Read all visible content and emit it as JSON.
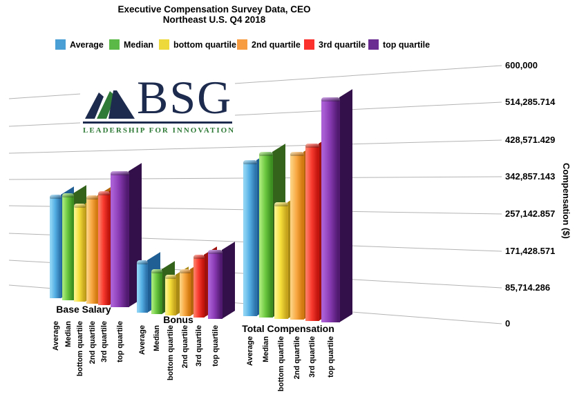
{
  "title": {
    "line1": "Executive Compensation Survey Data, CEO",
    "line2": "Northeast U.S. Q4 2018"
  },
  "logo": {
    "text": "BSG",
    "tagline": "LEADERSHIP FOR INNOVATION",
    "navy": "#1C2B4E",
    "green": "#2E7A36"
  },
  "y_axis": {
    "title": "Compensation ($)",
    "tick_labels": [
      "600,000",
      "514,285.714",
      "428,571.429",
      "342,857.143",
      "257,142.857",
      "171,428.571",
      "85,714.286",
      "0"
    ]
  },
  "chart_data": {
    "type": "bar",
    "style": "3d-perspective-rounded-bars",
    "title": "Executive Compensation Survey Data, CEO",
    "subtitle": "Northeast U.S. Q4 2018",
    "ylabel": "Compensation ($)",
    "ylim": [
      0,
      600000
    ],
    "grid": true,
    "legend_position": "top",
    "categories": [
      "Base Salary",
      "Bonus",
      "Total Compensation"
    ],
    "series": [
      {
        "name": "Average",
        "values": [
          300000,
          130000,
          395000
        ],
        "colors": {
          "legend": "#4A9FD4",
          "light": "#8ED3F4",
          "main": "#55B0E4",
          "dark": "#2D74AC",
          "side": "#1F5F93"
        }
      },
      {
        "name": "Median",
        "values": [
          310000,
          110000,
          420000
        ],
        "colors": {
          "legend": "#5BBA47",
          "light": "#A6E878",
          "main": "#6CC840",
          "dark": "#3C8F20",
          "side": "#34641C"
        }
      },
      {
        "name": "bottom quartile",
        "values": [
          285000,
          100000,
          295000
        ],
        "colors": {
          "legend": "#EDD93B",
          "light": "#FBF288",
          "main": "#F6DF3A",
          "dark": "#C6A51D",
          "side": "#A88A14"
        }
      },
      {
        "name": "2nd quartile",
        "values": [
          315000,
          115000,
          425000
        ],
        "colors": {
          "legend": "#F79C40",
          "light": "#FBCF7D",
          "main": "#F8A843",
          "dark": "#D2790F",
          "side": "#B5650D"
        }
      },
      {
        "name": "3rd quartile",
        "values": [
          330000,
          155000,
          450000
        ],
        "colors": {
          "legend": "#FB312E",
          "light": "#FB7A63",
          "main": "#F93B30",
          "dark": "#C3150E",
          "side": "#9E110C"
        }
      },
      {
        "name": "top quartile",
        "values": [
          395000,
          170000,
          570000
        ],
        "colors": {
          "legend": "#6B2C91",
          "light": "#AA60D4",
          "main": "#8A3BB4",
          "dark": "#511A70",
          "side": "#33104A"
        }
      }
    ]
  }
}
